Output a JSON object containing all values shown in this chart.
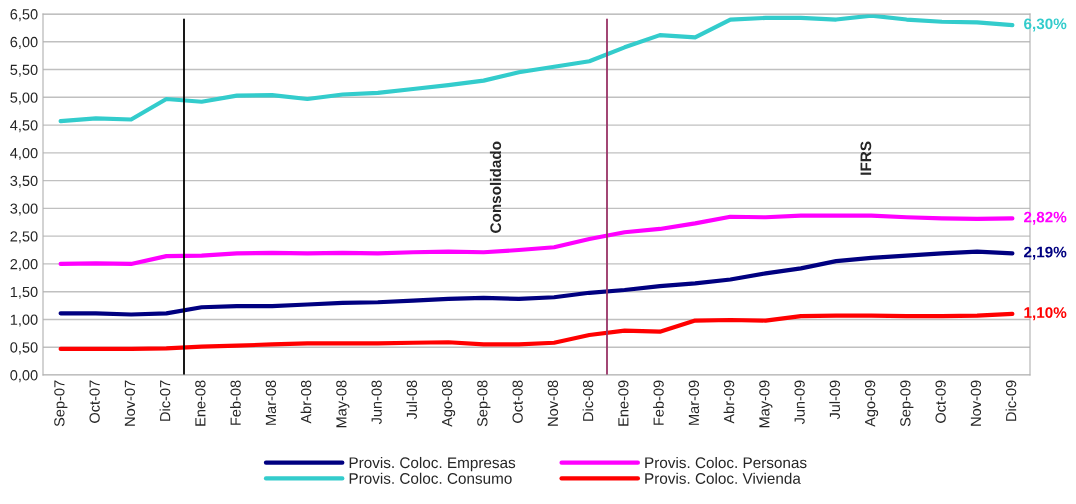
{
  "chart_data": {
    "type": "line",
    "categories": [
      "Sep-07",
      "Oct-07",
      "Nov-07",
      "Dic-07",
      "Ene-08",
      "Feb-08",
      "Mar-08",
      "Abr-08",
      "May-08",
      "Jun-08",
      "Jul-08",
      "Ago-08",
      "Sep-08",
      "Oct-08",
      "Nov-08",
      "Dic-08",
      "Ene-09",
      "Feb-09",
      "Mar-09",
      "Abr-09",
      "May-09",
      "Jun-09",
      "Jul-09",
      "Ago-09",
      "Sep-09",
      "Oct-09",
      "Nov-09",
      "Dic-09"
    ],
    "series": [
      {
        "name": "Provis. Coloc. Empresas",
        "color": "#000080",
        "values": [
          1.11,
          1.11,
          1.09,
          1.11,
          1.22,
          1.24,
          1.24,
          1.27,
          1.3,
          1.31,
          1.34,
          1.37,
          1.39,
          1.37,
          1.4,
          1.48,
          1.53,
          1.6,
          1.65,
          1.72,
          1.83,
          1.92,
          2.05,
          2.11,
          2.15,
          2.19,
          2.22,
          2.19
        ],
        "value_labels": [
          null,
          null,
          null,
          null,
          null,
          null,
          null,
          null,
          null,
          null,
          null,
          null,
          null,
          null,
          null,
          null,
          null,
          null,
          null,
          null,
          null,
          null,
          null,
          null,
          null,
          null,
          null,
          "2,19%"
        ]
      },
      {
        "name": "Provis. Coloc. Personas",
        "color": "#ff00ff",
        "values": [
          2.0,
          2.01,
          2.0,
          2.14,
          2.15,
          2.19,
          2.2,
          2.19,
          2.2,
          2.19,
          2.21,
          2.22,
          2.21,
          2.25,
          2.3,
          2.45,
          2.57,
          2.63,
          2.73,
          2.85,
          2.84,
          2.87,
          2.87,
          2.87,
          2.84,
          2.82,
          2.81,
          2.82
        ],
        "value_labels": [
          null,
          null,
          null,
          null,
          null,
          null,
          null,
          null,
          null,
          null,
          null,
          null,
          null,
          null,
          null,
          null,
          null,
          null,
          null,
          null,
          null,
          null,
          null,
          null,
          null,
          null,
          null,
          "2,82%"
        ]
      },
      {
        "name": "Provis. Coloc. Consumo",
        "color": "#33cccc",
        "values": [
          4.57,
          4.62,
          4.6,
          4.97,
          4.92,
          5.03,
          5.04,
          4.97,
          5.05,
          5.08,
          5.15,
          5.22,
          5.3,
          5.45,
          5.55,
          5.65,
          5.9,
          6.12,
          6.08,
          6.4,
          6.43,
          6.43,
          6.4,
          6.47,
          6.4,
          6.36,
          6.35,
          6.3
        ],
        "value_labels": [
          null,
          null,
          null,
          null,
          null,
          null,
          null,
          null,
          null,
          null,
          null,
          null,
          null,
          null,
          null,
          null,
          null,
          null,
          null,
          null,
          null,
          null,
          null,
          null,
          null,
          null,
          null,
          "6,30%"
        ]
      },
      {
        "name": "Provis. Coloc. Vivienda",
        "color": "#ff0000",
        "values": [
          0.47,
          0.47,
          0.47,
          0.48,
          0.51,
          0.53,
          0.55,
          0.57,
          0.57,
          0.57,
          0.58,
          0.59,
          0.55,
          0.55,
          0.58,
          0.72,
          0.8,
          0.78,
          0.98,
          0.99,
          0.98,
          1.06,
          1.07,
          1.07,
          1.06,
          1.06,
          1.07,
          1.1
        ],
        "value_labels": [
          null,
          null,
          null,
          null,
          null,
          null,
          null,
          null,
          null,
          null,
          null,
          null,
          null,
          null,
          null,
          null,
          null,
          null,
          null,
          null,
          null,
          null,
          null,
          null,
          null,
          null,
          null,
          "1,10%"
        ]
      }
    ],
    "ylim": [
      0,
      6.5
    ],
    "yticks": [
      {
        "value": 0,
        "label": "0,00"
      },
      {
        "value": 0.5,
        "label": "0,50"
      },
      {
        "value": 1,
        "label": "1,00"
      },
      {
        "value": 1.5,
        "label": "1,50"
      },
      {
        "value": 2,
        "label": "2,00"
      },
      {
        "value": 2.5,
        "label": "2,50"
      },
      {
        "value": 3,
        "label": "3,00"
      },
      {
        "value": 3.5,
        "label": "3,50"
      },
      {
        "value": 4,
        "label": "4,00"
      },
      {
        "value": 4.5,
        "label": "4,50"
      },
      {
        "value": 5,
        "label": "5,00"
      },
      {
        "value": 5.5,
        "label": "5,50"
      },
      {
        "value": 6,
        "label": "6,00"
      },
      {
        "value": 6.5,
        "label": "6,50"
      }
    ],
    "annotations": [
      "Consolidado",
      "IFRS"
    ],
    "ref_lines": [
      {
        "axis": "x",
        "value": "Ene-08",
        "color": "#000000"
      },
      {
        "axis": "x",
        "value": "Ene-09",
        "color": "#993366"
      }
    ],
    "grid": "y",
    "legend": "bottom",
    "marker": "none",
    "line_style": "solid"
  }
}
